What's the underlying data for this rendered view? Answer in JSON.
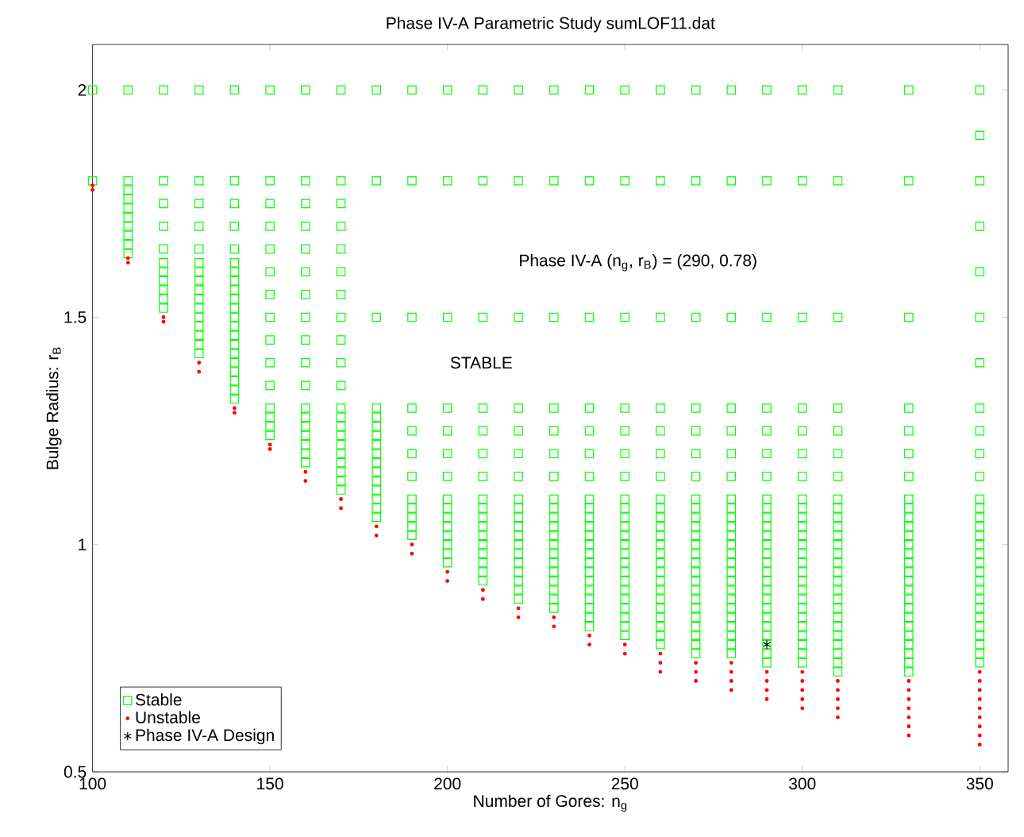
{
  "chart_data": {
    "type": "scatter",
    "title": "Phase IV-A Parametric Study sumLOF11.dat",
    "xlabel": "Number of Gores: n$_{g}$",
    "ylabel": "Bulge Radius: r$_{B}$",
    "xlim": [
      100,
      358
    ],
    "ylim": [
      0.5,
      2.1
    ],
    "xticks": [
      100,
      150,
      200,
      250,
      300,
      350
    ],
    "yticks": [
      0.5,
      1,
      1.5,
      2
    ],
    "grid": false,
    "legend": "bottom left",
    "annotations": [
      "Phase IV-A  (n$_{g}$, r$_{B}$) = (290, 0.78)",
      "STABLE"
    ],
    "series": [
      {
        "name": "Stable",
        "marker": "square",
        "color": "#00ff00",
        "x": [
          100,
          100,
          110,
          110,
          110,
          110,
          110,
          110,
          110,
          110,
          110,
          110,
          120,
          120,
          120,
          120,
          120,
          120,
          120,
          120,
          120,
          120,
          120,
          130,
          130,
          130,
          130,
          130,
          130,
          130,
          130,
          130,
          130,
          130,
          130,
          130,
          130,
          130,
          130,
          140,
          140,
          140,
          140,
          140,
          140,
          140,
          140,
          140,
          140,
          140,
          140,
          140,
          140,
          140,
          140,
          140,
          140,
          140,
          140,
          140,
          150,
          150,
          150,
          150,
          150,
          150,
          150,
          150,
          150,
          150,
          150,
          150,
          150,
          150,
          150,
          160,
          160,
          160,
          160,
          160,
          160,
          160,
          160,
          160,
          160,
          160,
          160,
          160,
          160,
          160,
          160,
          160,
          160,
          170,
          170,
          170,
          170,
          170,
          170,
          170,
          170,
          170,
          170,
          170,
          170,
          170,
          170,
          170,
          170,
          170,
          170,
          170,
          170,
          170,
          180,
          180,
          180,
          180,
          180,
          180,
          180,
          180,
          180,
          180,
          180,
          180,
          180,
          180,
          180,
          180,
          190,
          190,
          190,
          190,
          190,
          190,
          190,
          190,
          190,
          190,
          190,
          190,
          200,
          200,
          200,
          200,
          200,
          200,
          200,
          200,
          200,
          200,
          200,
          200,
          200,
          200,
          200,
          210,
          210,
          210,
          210,
          210,
          210,
          210,
          210,
          210,
          210,
          210,
          210,
          210,
          210,
          210,
          210,
          210,
          220,
          220,
          220,
          220,
          220,
          220,
          220,
          220,
          220,
          220,
          220,
          220,
          220,
          220,
          220,
          220,
          220,
          220,
          220,
          230,
          230,
          230,
          230,
          230,
          230,
          230,
          230,
          230,
          230,
          230,
          230,
          230,
          230,
          230,
          230,
          230,
          230,
          230,
          230,
          240,
          240,
          240,
          240,
          240,
          240,
          240,
          240,
          240,
          240,
          240,
          240,
          240,
          240,
          240,
          240,
          240,
          240,
          240,
          240,
          240,
          240,
          250,
          250,
          250,
          250,
          250,
          250,
          250,
          250,
          250,
          250,
          250,
          250,
          250,
          250,
          250,
          250,
          250,
          250,
          250,
          250,
          250,
          250,
          250,
          260,
          260,
          260,
          260,
          260,
          260,
          260,
          260,
          260,
          260,
          260,
          260,
          260,
          260,
          260,
          260,
          260,
          260,
          260,
          260,
          260,
          260,
          260,
          260,
          270,
          270,
          270,
          270,
          270,
          270,
          270,
          270,
          270,
          270,
          270,
          270,
          270,
          270,
          270,
          270,
          270,
          270,
          270,
          270,
          270,
          270,
          270,
          270,
          270,
          280,
          280,
          280,
          280,
          280,
          280,
          280,
          280,
          280,
          280,
          280,
          280,
          280,
          280,
          280,
          280,
          280,
          280,
          280,
          280,
          280,
          280,
          280,
          280,
          280,
          290,
          290,
          290,
          290,
          290,
          290,
          290,
          290,
          290,
          290,
          290,
          290,
          290,
          290,
          290,
          290,
          290,
          290,
          290,
          290,
          290,
          290,
          290,
          290,
          290,
          290,
          300,
          300,
          300,
          300,
          300,
          300,
          300,
          300,
          300,
          300,
          300,
          300,
          300,
          300,
          300,
          300,
          300,
          300,
          300,
          300,
          300,
          300,
          300,
          300,
          300,
          300,
          310,
          310,
          310,
          310,
          310,
          310,
          310,
          310,
          310,
          310,
          310,
          310,
          310,
          310,
          310,
          310,
          310,
          310,
          310,
          310,
          310,
          310,
          310,
          310,
          310,
          310,
          310,
          330,
          330,
          330,
          330,
          330,
          330,
          330,
          330,
          330,
          330,
          330,
          330,
          330,
          330,
          330,
          330,
          330,
          330,
          330,
          330,
          330,
          330,
          330,
          330,
          330,
          330,
          330,
          350,
          350,
          350,
          350,
          350,
          350,
          350,
          350,
          350,
          350,
          350,
          350,
          350,
          350,
          350,
          350,
          350,
          350,
          350,
          350,
          350,
          350,
          350,
          350,
          350,
          350,
          350,
          350,
          350,
          350
        ],
        "values": [
          2,
          1.8,
          2,
          1.8,
          1.78,
          1.76,
          1.74,
          1.72,
          1.7,
          1.68,
          1.66,
          1.64,
          2,
          1.8,
          1.75,
          1.7,
          1.65,
          1.62,
          1.6,
          1.58,
          1.56,
          1.54,
          1.52,
          2,
          1.8,
          1.75,
          1.7,
          1.65,
          1.62,
          1.6,
          1.58,
          1.56,
          1.54,
          1.52,
          1.5,
          1.48,
          1.46,
          1.44,
          1.42,
          2,
          1.8,
          1.75,
          1.7,
          1.65,
          1.62,
          1.6,
          1.58,
          1.56,
          1.54,
          1.52,
          1.5,
          1.48,
          1.46,
          1.44,
          1.42,
          1.4,
          1.38,
          1.36,
          1.34,
          1.32,
          2,
          1.8,
          1.75,
          1.7,
          1.65,
          1.6,
          1.55,
          1.5,
          1.45,
          1.4,
          1.35,
          1.3,
          1.28,
          1.26,
          1.24,
          2,
          1.8,
          1.75,
          1.7,
          1.65,
          1.6,
          1.55,
          1.5,
          1.45,
          1.4,
          1.35,
          1.3,
          1.28,
          1.26,
          1.24,
          1.22,
          1.2,
          1.18,
          2,
          1.8,
          1.75,
          1.7,
          1.65,
          1.6,
          1.55,
          1.5,
          1.45,
          1.4,
          1.35,
          1.3,
          1.28,
          1.26,
          1.24,
          1.22,
          1.2,
          1.18,
          1.16,
          1.14,
          1.12,
          2,
          1.8,
          1.5,
          1.3,
          1.28,
          1.26,
          1.24,
          1.22,
          1.2,
          1.18,
          1.16,
          1.14,
          1.12,
          1.1,
          1.08,
          1.06,
          2,
          1.8,
          1.5,
          1.3,
          1.25,
          1.2,
          1.15,
          1.1,
          1.08,
          1.06,
          1.04,
          1.02,
          2,
          1.8,
          1.5,
          1.3,
          1.25,
          1.2,
          1.15,
          1.1,
          1.08,
          1.06,
          1.04,
          1.02,
          1,
          0.98,
          0.96,
          2,
          1.8,
          1.5,
          1.3,
          1.25,
          1.2,
          1.15,
          1.1,
          1.08,
          1.06,
          1.04,
          1.02,
          1,
          0.98,
          0.96,
          0.94,
          0.92,
          2,
          1.8,
          1.5,
          1.3,
          1.25,
          1.2,
          1.15,
          1.1,
          1.08,
          1.06,
          1.04,
          1.02,
          1,
          0.98,
          0.96,
          0.94,
          0.92,
          0.9,
          0.88,
          2,
          1.8,
          1.5,
          1.3,
          1.25,
          1.2,
          1.15,
          1.1,
          1.08,
          1.06,
          1.04,
          1.02,
          1,
          0.98,
          0.96,
          0.94,
          0.92,
          0.9,
          0.88,
          0.86,
          2,
          1.8,
          1.5,
          1.3,
          1.25,
          1.2,
          1.15,
          1.1,
          1.08,
          1.06,
          1.04,
          1.02,
          1,
          0.98,
          0.96,
          0.94,
          0.92,
          0.9,
          0.88,
          0.86,
          0.84,
          0.82,
          2,
          1.8,
          1.5,
          1.3,
          1.25,
          1.2,
          1.15,
          1.1,
          1.08,
          1.06,
          1.04,
          1.02,
          1,
          0.98,
          0.96,
          0.94,
          0.92,
          0.9,
          0.88,
          0.86,
          0.84,
          0.82,
          0.8,
          2,
          1.8,
          1.5,
          1.3,
          1.25,
          1.2,
          1.15,
          1.1,
          1.08,
          1.06,
          1.04,
          1.02,
          1,
          0.98,
          0.96,
          0.94,
          0.92,
          0.9,
          0.88,
          0.86,
          0.84,
          0.82,
          0.8,
          0.78,
          2,
          1.8,
          1.5,
          1.3,
          1.25,
          1.2,
          1.15,
          1.1,
          1.08,
          1.06,
          1.04,
          1.02,
          1,
          0.98,
          0.96,
          0.94,
          0.92,
          0.9,
          0.88,
          0.86,
          0.84,
          0.82,
          0.8,
          0.78,
          0.76,
          2,
          1.8,
          1.5,
          1.3,
          1.25,
          1.2,
          1.15,
          1.1,
          1.08,
          1.06,
          1.04,
          1.02,
          1,
          0.98,
          0.96,
          0.94,
          0.92,
          0.9,
          0.88,
          0.86,
          0.84,
          0.82,
          0.8,
          0.78,
          0.76,
          2,
          1.8,
          1.5,
          1.3,
          1.25,
          1.2,
          1.15,
          1.1,
          1.08,
          1.06,
          1.04,
          1.02,
          1,
          0.98,
          0.96,
          0.94,
          0.92,
          0.9,
          0.88,
          0.86,
          0.84,
          0.82,
          0.8,
          0.78,
          0.76,
          0.74,
          2,
          1.8,
          1.5,
          1.3,
          1.25,
          1.2,
          1.15,
          1.1,
          1.08,
          1.06,
          1.04,
          1.02,
          1,
          0.98,
          0.96,
          0.94,
          0.92,
          0.9,
          0.88,
          0.86,
          0.84,
          0.82,
          0.8,
          0.78,
          0.76,
          0.74,
          2,
          1.8,
          1.5,
          1.3,
          1.25,
          1.2,
          1.15,
          1.1,
          1.08,
          1.06,
          1.04,
          1.02,
          1,
          0.98,
          0.96,
          0.94,
          0.92,
          0.9,
          0.88,
          0.86,
          0.84,
          0.82,
          0.8,
          0.78,
          0.76,
          0.74,
          0.72,
          2,
          1.8,
          1.5,
          1.3,
          1.25,
          1.2,
          1.15,
          1.1,
          1.08,
          1.06,
          1.04,
          1.02,
          1,
          0.98,
          0.96,
          0.94,
          0.92,
          0.9,
          0.88,
          0.86,
          0.84,
          0.82,
          0.8,
          0.78,
          0.76,
          0.74,
          0.72,
          2,
          1.9,
          1.8,
          1.7,
          1.6,
          1.5,
          1.4,
          1.3,
          1.25,
          1.2,
          1.15,
          1.1,
          1.08,
          1.06,
          1.04,
          1.02,
          1,
          0.98,
          0.96,
          0.94,
          0.92,
          0.9,
          0.88,
          0.86,
          0.84,
          0.82,
          0.8,
          0.78,
          0.76,
          0.74
        ]
      },
      {
        "name": "Unstable",
        "marker": "circle",
        "color": "#ff0000",
        "x": [
          100,
          100,
          110,
          110,
          120,
          120,
          130,
          130,
          140,
          140,
          150,
          150,
          160,
          160,
          170,
          170,
          180,
          180,
          190,
          190,
          200,
          200,
          210,
          210,
          220,
          220,
          230,
          230,
          240,
          240,
          250,
          250,
          260,
          260,
          260,
          270,
          270,
          270,
          280,
          280,
          280,
          280,
          290,
          290,
          290,
          290,
          300,
          300,
          300,
          300,
          300,
          310,
          310,
          310,
          310,
          310,
          330,
          330,
          330,
          330,
          330,
          330,
          330,
          350,
          350,
          350,
          350,
          350,
          350,
          350,
          350,
          350
        ],
        "values": [
          1.79,
          1.78,
          1.63,
          1.62,
          1.5,
          1.49,
          1.4,
          1.38,
          1.3,
          1.29,
          1.22,
          1.21,
          1.16,
          1.14,
          1.1,
          1.08,
          1.04,
          1.02,
          1,
          0.98,
          0.94,
          0.92,
          0.9,
          0.88,
          0.86,
          0.84,
          0.84,
          0.82,
          0.8,
          0.78,
          0.78,
          0.76,
          0.76,
          0.74,
          0.72,
          0.74,
          0.72,
          0.7,
          0.74,
          0.72,
          0.7,
          0.68,
          0.72,
          0.7,
          0.68,
          0.66,
          0.72,
          0.7,
          0.68,
          0.66,
          0.64,
          0.7,
          0.68,
          0.66,
          0.64,
          0.62,
          0.7,
          0.68,
          0.66,
          0.64,
          0.62,
          0.6,
          0.58,
          0.72,
          0.7,
          0.68,
          0.66,
          0.64,
          0.62,
          0.6,
          0.58,
          0.56
        ]
      },
      {
        "name": "Phase IV-A Design",
        "marker": "cross",
        "color": "#000000",
        "x": [
          290
        ],
        "values": [
          0.78
        ]
      }
    ]
  }
}
